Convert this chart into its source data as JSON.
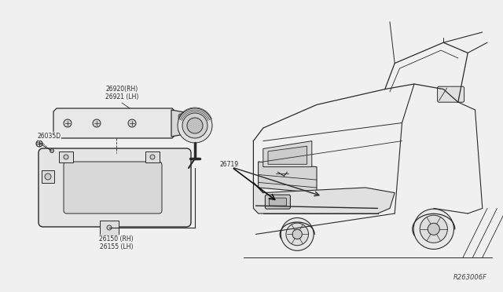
{
  "bg_color": "#f0f0f0",
  "line_color": "#2a2a2a",
  "text_color": "#2a2a2a",
  "ref_code": "R263006F",
  "label_26920": "26920(RH)\n26921 (LH)",
  "label_26035D": "26035D",
  "label_26719": "26719",
  "label_26150": "26150 (RH)\n26155 (LH)",
  "font_size": 5.5,
  "font_family": "DejaVu Sans"
}
